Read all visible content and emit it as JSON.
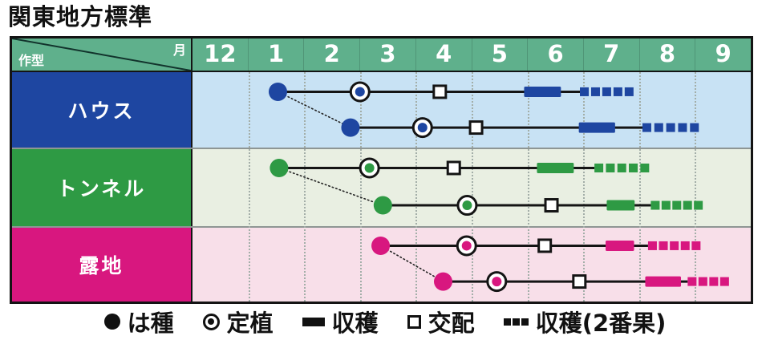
{
  "title": "関東地方標準",
  "table": {
    "corner": {
      "top_right": "月",
      "bottom_left": "作型"
    }
  },
  "chart_data": {
    "type": "timeline",
    "title": "関東地方標準",
    "units": "x values are column offsets from left edge of the 12-month column; each month column center = 0.5..9.5",
    "x_axis": {
      "label": "月",
      "categories": [
        "12",
        "1",
        "2",
        "3",
        "4",
        "5",
        "6",
        "7",
        "8",
        "9"
      ]
    },
    "row_axis_label": "作型",
    "rows": [
      {
        "label": "ハウス",
        "accent": "#1e46a1",
        "band_bg": "#c8e2f4",
        "lines": [
          {
            "sow": 1.53,
            "transplant": 3.0,
            "pollinate": 4.43,
            "harvest": [
              5.94,
              6.6
            ],
            "harvest2": [
              6.94,
              7.9
            ],
            "harvest2_segments": 5
          },
          {
            "sow": 2.83,
            "transplant": 4.12,
            "pollinate": 5.08,
            "harvest": [
              6.92,
              7.57
            ],
            "harvest2": [
              8.06,
              9.07
            ],
            "harvest2_segments": 5
          }
        ]
      },
      {
        "label": "トンネル",
        "accent": "#2e9a44",
        "band_bg": "#e9efe2",
        "lines": [
          {
            "sow": 1.55,
            "transplant": 3.17,
            "pollinate": 4.68,
            "harvest": [
              6.17,
              6.83
            ],
            "harvest2": [
              7.2,
              8.18
            ],
            "harvest2_segments": 5
          },
          {
            "sow": 3.41,
            "transplant": 4.92,
            "pollinate": 6.43,
            "harvest": [
              7.42,
              7.92
            ],
            "harvest2": [
              8.21,
              9.14
            ],
            "harvest2_segments": 5
          }
        ]
      },
      {
        "label": "露地",
        "accent": "#d8177f",
        "band_bg": "#f8dfe9",
        "lines": [
          {
            "sow": 3.37,
            "transplant": 4.91,
            "pollinate": 6.31,
            "harvest": [
              7.4,
              7.91
            ],
            "harvest2": [
              8.16,
              9.1
            ],
            "harvest2_segments": 5
          },
          {
            "sow": 4.49,
            "transplant": 5.45,
            "pollinate": 6.93,
            "harvest": [
              8.11,
              8.75
            ],
            "harvest2": [
              8.87,
              9.61
            ],
            "harvest2_segments": 4
          }
        ]
      }
    ]
  },
  "legend": {
    "items": [
      {
        "icon": "sow-circle-icon",
        "label": "は種"
      },
      {
        "icon": "transplant-double-circle-icon",
        "label": "定植"
      },
      {
        "icon": "harvest-bar-icon",
        "label": "収穫"
      },
      {
        "icon": "pollination-square-icon",
        "label": "交配"
      },
      {
        "icon": "harvest2-dashes-icon",
        "label": "収穫(2番果)"
      }
    ]
  },
  "colors": {
    "header_bg": "#5fb08c",
    "header_text": "#ffffff",
    "border": "#141414",
    "band_separator": "#8e9694",
    "grid_dotted": "#a3aea8",
    "legend_text": "#111111"
  }
}
